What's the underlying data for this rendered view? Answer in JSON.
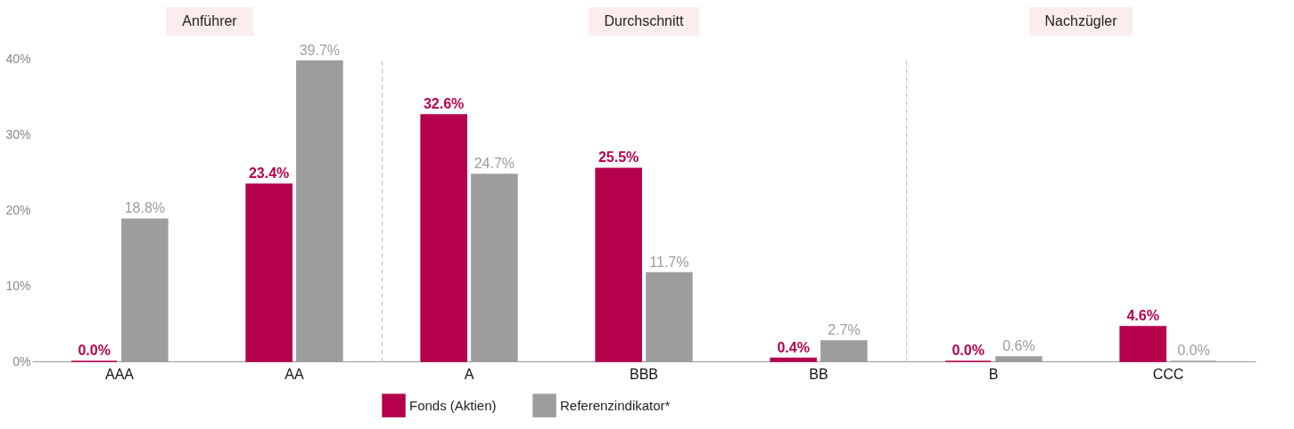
{
  "chart_data": [
    {
      "type": "bar",
      "title": "Anführer",
      "categories": [
        "AAA",
        "AA"
      ],
      "series": [
        {
          "color": "#b5004b",
          "values": [
            0.0,
            23.4
          ],
          "value_labels": [
            "0.0%",
            "23.4%"
          ]
        },
        {
          "color": "#9d9d9d",
          "values": [
            18.8,
            39.7
          ],
          "value_labels": [
            "18.8%",
            "39.7%"
          ]
        }
      ],
      "ylim": [
        0,
        40
      ],
      "yticks": [
        {
          "value": 0,
          "label": "0%"
        },
        {
          "value": 10,
          "label": "10%"
        },
        {
          "value": 20,
          "label": "20%"
        },
        {
          "value": 30,
          "label": "30%"
        },
        {
          "value": 40,
          "label": "40%"
        }
      ]
    },
    {
      "type": "bar",
      "title": "Durchschnitt",
      "categories": [
        "A",
        "BBB",
        "BB"
      ],
      "series": [
        {
          "name": "Fonds (Aktien)",
          "color": "#b5004b",
          "values": [
            32.6,
            25.5,
            0.4
          ],
          "value_labels": [
            "32.6%",
            "25.5%",
            "0.4%"
          ]
        },
        {
          "name": "Referenzindikator*",
          "color": "#9d9d9d",
          "values": [
            24.7,
            11.7,
            2.7
          ],
          "value_labels": [
            "24.7%",
            "11.7%",
            "2.7%"
          ]
        }
      ],
      "ylim": [
        0,
        40
      ],
      "tick_labels": "x",
      "legend": "bottom"
    },
    {
      "type": "bar",
      "title": "Nachzügler",
      "categories": [
        "B",
        "CCC"
      ],
      "series": [
        {
          "color": "#b5004b",
          "values": [
            0.0,
            4.6
          ],
          "value_labels": [
            "0.0%",
            "4.6%"
          ]
        },
        {
          "color": "#9d9d9d",
          "values": [
            0.6,
            0.0
          ],
          "value_labels": [
            "0.6%",
            "0.0%"
          ]
        }
      ],
      "ylim": [
        0,
        40
      ],
      "tick_labels": "x"
    }
  ]
}
